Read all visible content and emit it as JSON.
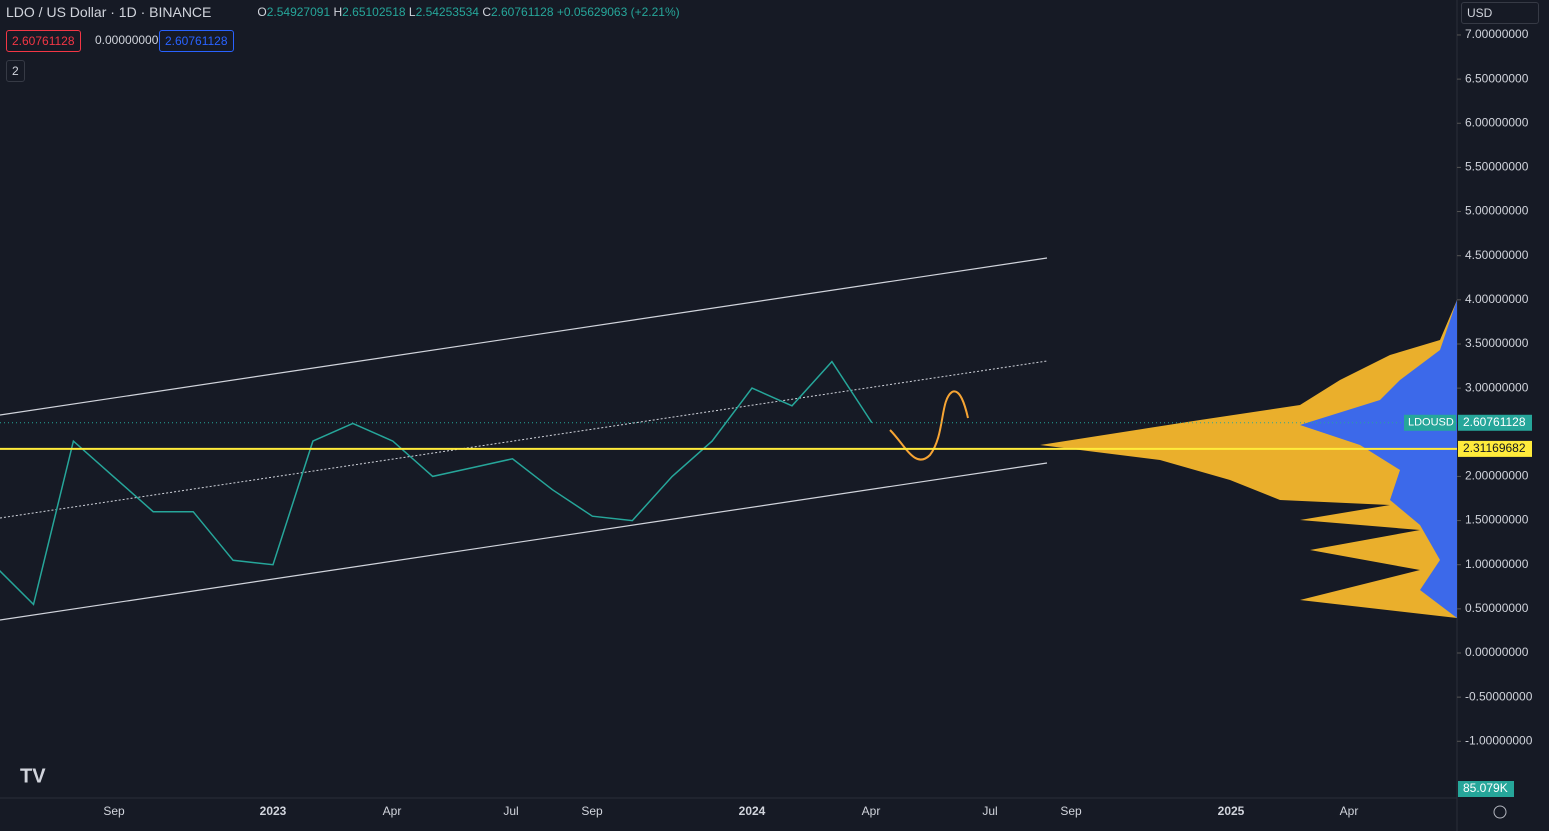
{
  "header": {
    "title": "LDO / US Dollar · 1D · BINANCE",
    "o_label": "O",
    "open": "2.54927091",
    "h_label": "H",
    "high": "2.65102518",
    "l_label": "L",
    "low": "2.54253534",
    "c_label": "C",
    "close": "2.60761128",
    "change": "+0.05629063 (+2.21%)",
    "sell": "2.60761128",
    "spread": "0.00000000",
    "buy": "2.60761128",
    "indicators": "2",
    "currency": "USD"
  },
  "price": {
    "ticks": [
      {
        "value": 7,
        "label": "7.00000000"
      },
      {
        "value": 6.5,
        "label": "6.50000000"
      },
      {
        "value": 6,
        "label": "6.00000000"
      },
      {
        "value": 5.5,
        "label": "5.50000000"
      },
      {
        "value": 5,
        "label": "5.00000000"
      },
      {
        "value": 4.5,
        "label": "4.50000000"
      },
      {
        "value": 4,
        "label": "4.00000000"
      },
      {
        "value": 3.5,
        "label": "3.50000000"
      },
      {
        "value": 3,
        "label": "3.00000000"
      },
      {
        "value": 2,
        "label": "2.00000000"
      },
      {
        "value": 1.5,
        "label": "1.50000000"
      },
      {
        "value": 1,
        "label": "1.00000000"
      },
      {
        "value": 0.5,
        "label": "0.50000000"
      },
      {
        "value": 0,
        "label": "0.00000000"
      },
      {
        "value": -0.5,
        "label": "-0.50000000"
      },
      {
        "value": -1,
        "label": "-1.00000000"
      }
    ],
    "months": [
      "2022-06",
      "2022-07",
      "2022-08",
      "2022-09",
      "2022-10",
      "2022-11",
      "2022-12",
      "2023-01",
      "2023-02",
      "2023-03",
      "2023-04",
      "2023-05",
      "2023-06",
      "2023-07",
      "2023-08",
      "2023-09",
      "2023-10",
      "2023-11",
      "2023-12",
      "2024-01",
      "2024-02",
      "2024-03",
      "2024-04"
    ],
    "closes": [
      1.0,
      0.55,
      2.4,
      2.0,
      1.6,
      1.6,
      1.05,
      1.0,
      2.4,
      2.6,
      2.4,
      2.0,
      2.1,
      2.2,
      1.85,
      1.55,
      1.5,
      2.0,
      2.4,
      3.0,
      2.8,
      3.3,
      2.61
    ],
    "symbol": "LDOUSD",
    "last": 2.60761128,
    "level": 2.31169682,
    "volume": "85.079K"
  },
  "time_axis": [
    "Sep",
    "2023",
    "Apr",
    "Jul",
    "Sep",
    "2024",
    "Apr",
    "Jul",
    "Sep",
    "2025",
    "Apr"
  ]
}
